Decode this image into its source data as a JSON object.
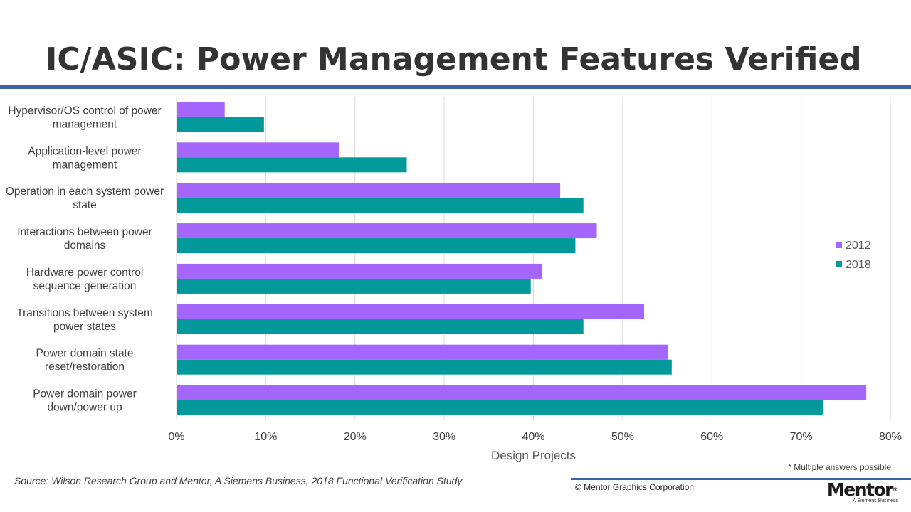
{
  "page": {
    "title": "IC/ASIC: Power Management Features Verified",
    "footnote": "* Multiple answers possible",
    "source": "Source:  Wilson Research Group and Mentor, A Siemens Business, 2018 Functional Verification  Study",
    "copyright": "© Mentor Graphics Corporation",
    "logo_name": "Mentor",
    "logo_tagline": "A Siemens Business"
  },
  "colors": {
    "title_rule": "#3a64a2",
    "footer_rule": "#3a64a2",
    "series_2012": "#a466fd",
    "series_2018": "#02999a",
    "gridline": "#d9d9d9"
  },
  "chart_data": {
    "type": "bar",
    "orientation": "horizontal",
    "categories": [
      [
        "Hypervisor/OS control of power",
        "management"
      ],
      [
        "Application-level power",
        "management"
      ],
      [
        "Operation in each system power",
        "state"
      ],
      [
        "Interactions between power",
        "domains"
      ],
      [
        "Hardware power control",
        "sequence generation"
      ],
      [
        "Transitions between system",
        "power states"
      ],
      [
        "Power domain state",
        "reset/restoration"
      ],
      [
        "Power domain power",
        "down/power up"
      ]
    ],
    "series": [
      {
        "name": "2012",
        "values": [
          5.4,
          18.2,
          43.0,
          47.1,
          41.0,
          52.4,
          55.1,
          77.3
        ]
      },
      {
        "name": "2018",
        "values": [
          9.8,
          25.8,
          45.6,
          44.7,
          39.7,
          45.6,
          55.5,
          72.5
        ]
      }
    ],
    "xlabel": "Design Projects",
    "xlim": [
      0,
      80
    ],
    "xticks": [
      "0%",
      "10%",
      "20%",
      "30%",
      "40%",
      "50%",
      "60%",
      "70%",
      "80%"
    ],
    "grid": "vertical",
    "legend_position": "right",
    "legend": [
      "2012",
      "2018"
    ]
  }
}
